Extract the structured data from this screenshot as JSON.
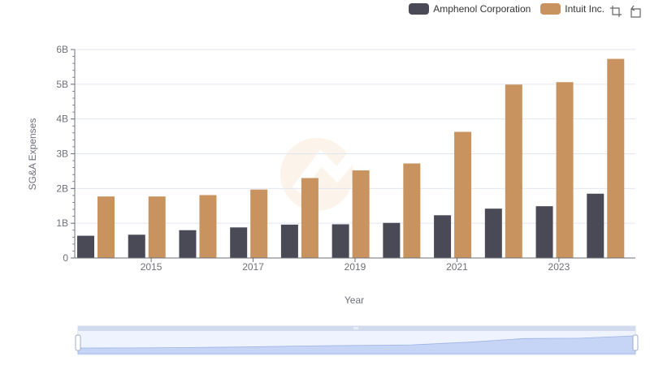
{
  "legend": {
    "items": [
      {
        "name": "Amphenol Corporation",
        "color": "#4a4a57"
      },
      {
        "name": "Intuit Inc.",
        "color": "#c8935f"
      }
    ]
  },
  "toolbox": {
    "icons": [
      "zoom-icon",
      "restore-icon"
    ]
  },
  "chart_data": {
    "type": "bar",
    "xlabel": "Year",
    "ylabel": "SG&A Expenses",
    "ylim": [
      0,
      6000000000
    ],
    "y_ticks": [
      "0",
      "1B",
      "2B",
      "3B",
      "4B",
      "5B",
      "6B"
    ],
    "categories": [
      2014,
      2015,
      2016,
      2017,
      2018,
      2019,
      2020,
      2021,
      2022,
      2023,
      2024
    ],
    "x_tick_labels": [
      "2015",
      "2017",
      "2019",
      "2021",
      "2023"
    ],
    "series": [
      {
        "name": "Amphenol Corporation",
        "color": "#4a4a57",
        "values": [
          640000000,
          670000000,
          800000000,
          880000000,
          960000000,
          970000000,
          1010000000,
          1230000000,
          1420000000,
          1490000000,
          1850000000
        ]
      },
      {
        "name": "Intuit Inc.",
        "color": "#c8935f",
        "values": [
          1770000000,
          1770000000,
          1810000000,
          1970000000,
          2300000000,
          2520000000,
          2720000000,
          3630000000,
          4990000000,
          5060000000,
          5730000000
        ]
      }
    ],
    "grid": true,
    "legend_position": "top-right",
    "has_data_zoom": true
  }
}
